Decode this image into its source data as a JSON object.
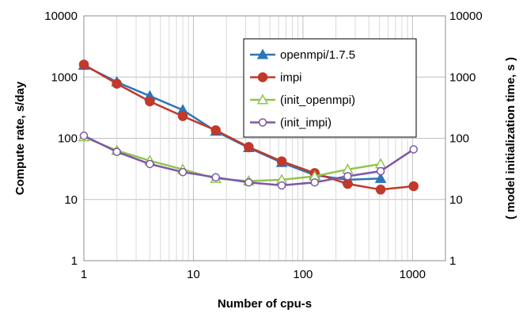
{
  "chart_data": {
    "type": "line",
    "xlabel": "Number of cpu-s",
    "ylabel_left": "Compute rate, s/day",
    "ylabel_right": "( model initialization time, s )",
    "x_scale": "log",
    "y_scale": "log",
    "xlim": [
      1,
      2000
    ],
    "ylim": [
      1,
      10000
    ],
    "y2lim": [
      1,
      10000
    ],
    "x_ticks": [
      "1",
      "10",
      "100",
      "1000"
    ],
    "y_ticks": [
      "1",
      "10",
      "100",
      "1000",
      "10000"
    ],
    "y2_ticks": [
      "1",
      "10",
      "100",
      "1000",
      "10000"
    ],
    "grid": true,
    "legend_position": "top-right",
    "series": [
      {
        "name": "openmpi/1.7.5",
        "color": "#2e75b6",
        "marker": "triangle-filled",
        "x": [
          1,
          2,
          4,
          8,
          16,
          32,
          64,
          128,
          256,
          512
        ],
        "y": [
          1550,
          830,
          490,
          290,
          130,
          70,
          40,
          25,
          21,
          22
        ]
      },
      {
        "name": "impi",
        "color": "#c0392b",
        "marker": "circle-filled",
        "x": [
          1,
          2,
          4,
          8,
          16,
          32,
          64,
          128,
          256,
          512,
          1024
        ],
        "y": [
          1600,
          780,
          400,
          230,
          135,
          72,
          42,
          27,
          18,
          14.5,
          16.5
        ]
      },
      {
        "name": "(init_openmpi)",
        "color": "#92c350",
        "marker": "triangle-open",
        "x": [
          1,
          2,
          4,
          8,
          16,
          32,
          64,
          128,
          256,
          512
        ],
        "y": [
          105,
          63,
          43,
          31,
          22,
          20,
          21,
          24,
          31,
          38
        ]
      },
      {
        "name": "(init_impi)",
        "color": "#7e57a8",
        "marker": "circle-open",
        "x": [
          1,
          2,
          4,
          8,
          16,
          32,
          64,
          128,
          256,
          512,
          1024
        ],
        "y": [
          110,
          60,
          38,
          28,
          23,
          19,
          17,
          19,
          24,
          29,
          66
        ]
      }
    ]
  }
}
